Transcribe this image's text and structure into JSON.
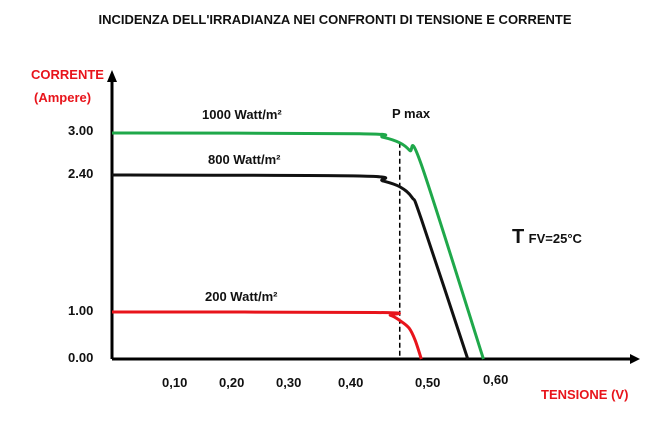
{
  "chart_data": {
    "type": "line",
    "title": "INCIDENZA DELL'IRRADIANZA NEI CONFRONTI DI TENSIONE E CORRENTE",
    "ylabel": [
      "CORRENTE",
      "(Ampere)"
    ],
    "xlabel": "TENSIONE (V)",
    "y_ticks": [
      "3.00",
      "2.40",
      "1.00",
      "0.00"
    ],
    "x_ticks": [
      "0,10",
      "0,20",
      "0,30",
      "0,40",
      "0,50",
      "0,60"
    ],
    "grid": false,
    "annotations": {
      "pmax": "P max",
      "temperature_main": "T",
      "temperature_sub": "FV=25°C",
      "pmax_voltage": 0.462
    },
    "series": [
      {
        "name": "1000 Watt/m²",
        "color": "#1fa84a",
        "points": [
          [
            0,
            3.0
          ],
          [
            0.41,
            2.99
          ],
          [
            0.44,
            2.94
          ],
          [
            0.462,
            2.86
          ],
          [
            0.475,
            2.75
          ],
          [
            0.49,
            2.55
          ],
          [
            0.58,
            0
          ]
        ]
      },
      {
        "name": "800 Watt/m²",
        "color": "#111111",
        "points": [
          [
            0,
            2.4
          ],
          [
            0.41,
            2.39
          ],
          [
            0.44,
            2.34
          ],
          [
            0.462,
            2.28
          ],
          [
            0.478,
            2.17
          ],
          [
            0.49,
            1.95
          ],
          [
            0.557,
            0
          ]
        ]
      },
      {
        "name": "200 Watt/m²",
        "color": "#e8141b",
        "points": [
          [
            0,
            1.0
          ],
          [
            0.43,
            0.99
          ],
          [
            0.45,
            0.93
          ],
          [
            0.462,
            0.82
          ],
          [
            0.474,
            0.66
          ],
          [
            0.482,
            0.4
          ],
          [
            0.49,
            0
          ]
        ]
      }
    ]
  }
}
